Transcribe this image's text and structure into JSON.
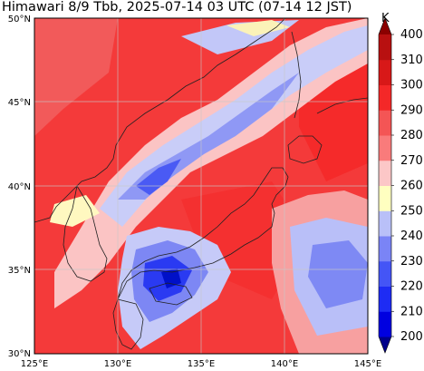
{
  "title": "Himawari 8/9 Tbb, 2025-07-14 03 UTC (07-14 12 JST)",
  "map": {
    "lon_ticks": [
      "125°E",
      "130°E",
      "135°E",
      "140°E",
      "145°E"
    ],
    "lat_ticks": [
      "30°N",
      "35°N",
      "40°N",
      "45°N",
      "50°N"
    ],
    "extent": {
      "lon": [
        125,
        145
      ],
      "lat": [
        30,
        50
      ]
    },
    "grid": true
  },
  "colorbar": {
    "unit": "K",
    "levels": [
      "200",
      "210",
      "220",
      "230",
      "240",
      "250",
      "260",
      "270",
      "280",
      "290",
      "300",
      "310",
      "400"
    ],
    "colors": [
      "#00008b",
      "#0000e0",
      "#1e2cf4",
      "#4455f6",
      "#7a84f6",
      "#b9c0f8",
      "#ffffc0",
      "#fcc7c7",
      "#f97b7b",
      "#f45555",
      "#f42828",
      "#d81818",
      "#b81010",
      "#8b0000"
    ],
    "extends": "both"
  },
  "palette": {
    "background_warm": "#f43030",
    "warm_mid": "#f46060",
    "cloud_pink": "#fbc8c8",
    "cloud_light": "#c8ccf8",
    "cloud_blue": "#7f8af4",
    "cloud_deep": "#2838f0",
    "coast": "#222222"
  }
}
